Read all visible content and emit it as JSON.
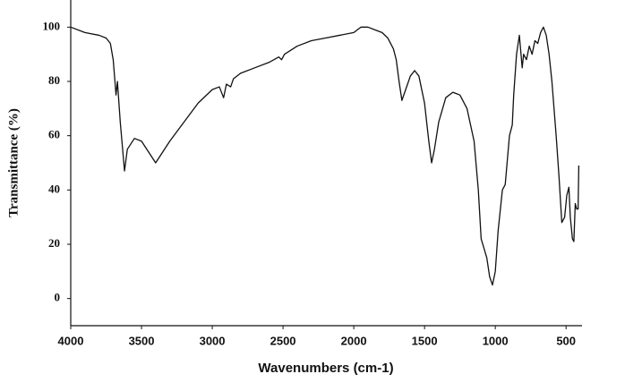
{
  "chart_data": {
    "type": "line",
    "x_label": "Wavenumbers (cm-1)",
    "y_label": "Transmittance (%)",
    "xlim": [
      4000,
      400
    ],
    "ylim": [
      -10,
      110
    ],
    "xticks": [
      4000,
      3500,
      3000,
      2500,
      2000,
      1500,
      1000,
      500
    ],
    "yticks": [
      0,
      20,
      40,
      60,
      80,
      100
    ],
    "color": "#111111",
    "x": [
      4000,
      3900,
      3800,
      3750,
      3720,
      3700,
      3680,
      3670,
      3650,
      3620,
      3600,
      3550,
      3500,
      3450,
      3400,
      3300,
      3200,
      3100,
      3000,
      2950,
      2920,
      2900,
      2870,
      2850,
      2800,
      2700,
      2600,
      2530,
      2510,
      2490,
      2400,
      2300,
      2200,
      2100,
      2000,
      1950,
      1900,
      1850,
      1800,
      1760,
      1720,
      1700,
      1680,
      1660,
      1640,
      1600,
      1570,
      1540,
      1500,
      1470,
      1450,
      1430,
      1400,
      1350,
      1300,
      1250,
      1200,
      1150,
      1120,
      1100,
      1060,
      1040,
      1020,
      1000,
      980,
      950,
      930,
      900,
      880,
      870,
      850,
      830,
      810,
      800,
      780,
      760,
      740,
      720,
      700,
      680,
      660,
      640,
      620,
      600,
      570,
      550,
      530,
      510,
      495,
      480,
      470,
      455,
      445,
      435,
      425,
      415,
      410
    ],
    "values": [
      100,
      98,
      97,
      96,
      94,
      88,
      75,
      80,
      65,
      47,
      55,
      59,
      58,
      54,
      50,
      58,
      65,
      72,
      77,
      78,
      74,
      79,
      78,
      81,
      83,
      85,
      87,
      89,
      88,
      90,
      93,
      95,
      96,
      97,
      98,
      100,
      100,
      99,
      98,
      96,
      92,
      88,
      80,
      73,
      76,
      82,
      84,
      82,
      72,
      58,
      50,
      55,
      65,
      74,
      76,
      75,
      70,
      58,
      40,
      22,
      15,
      8,
      5,
      10,
      25,
      40,
      42,
      60,
      64,
      75,
      90,
      97,
      85,
      90,
      88,
      93,
      90,
      95,
      94,
      98,
      100,
      97,
      90,
      80,
      60,
      45,
      28,
      30,
      38,
      41,
      30,
      22,
      21,
      35,
      33,
      33,
      49
    ]
  }
}
